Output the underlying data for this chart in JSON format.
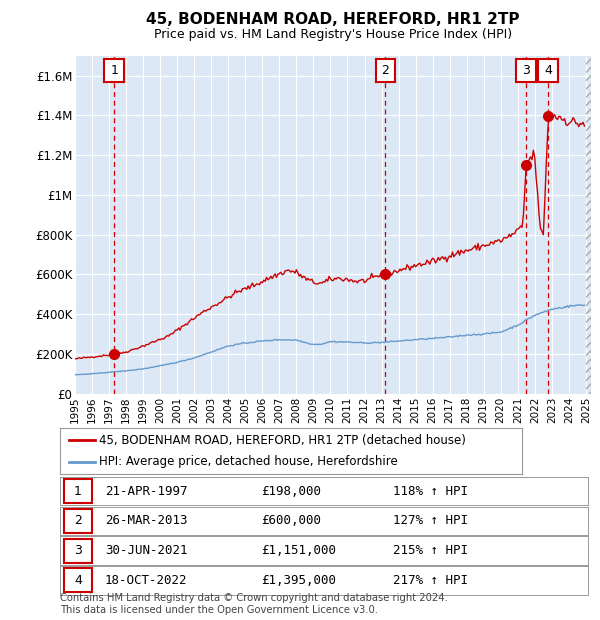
{
  "title": "45, BODENHAM ROAD, HEREFORD, HR1 2TP",
  "subtitle": "Price paid vs. HM Land Registry's House Price Index (HPI)",
  "ylim": [
    0,
    1700000
  ],
  "yticks": [
    0,
    200000,
    400000,
    600000,
    800000,
    1000000,
    1200000,
    1400000,
    1600000
  ],
  "ytick_labels": [
    "£0",
    "£200K",
    "£400K",
    "£600K",
    "£800K",
    "£1M",
    "£1.2M",
    "£1.4M",
    "£1.6M"
  ],
  "xlim_start": 1995.0,
  "xlim_end": 2025.3,
  "plot_bg_color": "#dce8f5",
  "red_line_color": "#cc0000",
  "blue_line_color": "#6699cc",
  "sales": [
    {
      "num": 1,
      "year": 1997.31,
      "price": 198000,
      "date": "21-APR-1997",
      "price_str": "£198,000",
      "hpi_pct": "118%",
      "arrow": "↑"
    },
    {
      "num": 2,
      "year": 2013.23,
      "price": 600000,
      "date": "26-MAR-2013",
      "price_str": "£600,000",
      "hpi_pct": "127%",
      "arrow": "↑"
    },
    {
      "num": 3,
      "year": 2021.49,
      "price": 1151000,
      "date": "30-JUN-2021",
      "price_str": "£1,151,000",
      "hpi_pct": "215%",
      "arrow": "↑"
    },
    {
      "num": 4,
      "year": 2022.79,
      "price": 1395000,
      "date": "18-OCT-2022",
      "price_str": "£1,395,000",
      "hpi_pct": "217%",
      "arrow": "↑"
    }
  ],
  "legend_line1": "45, BODENHAM ROAD, HEREFORD, HR1 2TP (detached house)",
  "legend_line2": "HPI: Average price, detached house, Herefordshire",
  "copyright": "Contains HM Land Registry data © Crown copyright and database right 2024.\nThis data is licensed under the Open Government Licence v3.0."
}
